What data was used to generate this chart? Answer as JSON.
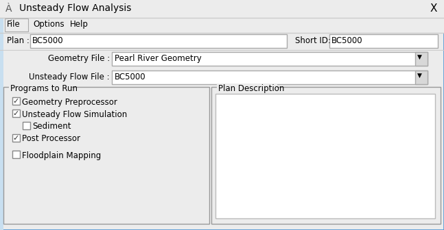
{
  "title_bar_text": "Unsteady Flow Analysis",
  "close_button": "X",
  "menu_items": [
    "File",
    "Options",
    "Help"
  ],
  "plan_label": "Plan :",
  "plan_value": "BC5000",
  "short_id_label": "Short ID:",
  "short_id_value": "BC5000",
  "geometry_file_label": "Geometry File :",
  "geometry_file_value": "Pearl River Geometry",
  "unsteady_flow_label": "Unsteady Flow File :",
  "unsteady_flow_value": "BC5000",
  "programs_group_label": "Programs to Run",
  "checkboxes": [
    {
      "label": "Geometry Preprocessor",
      "checked": true,
      "indent": 0
    },
    {
      "label": "Unsteady Flow Simulation",
      "checked": true,
      "indent": 0
    },
    {
      "label": "Sediment",
      "checked": false,
      "indent": 1
    },
    {
      "label": "Post Processor",
      "checked": true,
      "indent": 0
    }
  ],
  "floodplain_label": "Floodplain Mapping",
  "floodplain_checked": false,
  "plan_desc_label": "Plan Description",
  "bg_color": "#ececec",
  "outer_border_color": "#5b9bd5",
  "input_bg": "#ffffff",
  "input_border": "#aaaaaa",
  "group_border": "#999999",
  "check_color": "#333333",
  "text_color": "#000000",
  "dropdown_bg": "#d8d8d8",
  "menu_highlight_border": "#aaaaaa",
  "left_accent_color": "#c8dff0"
}
